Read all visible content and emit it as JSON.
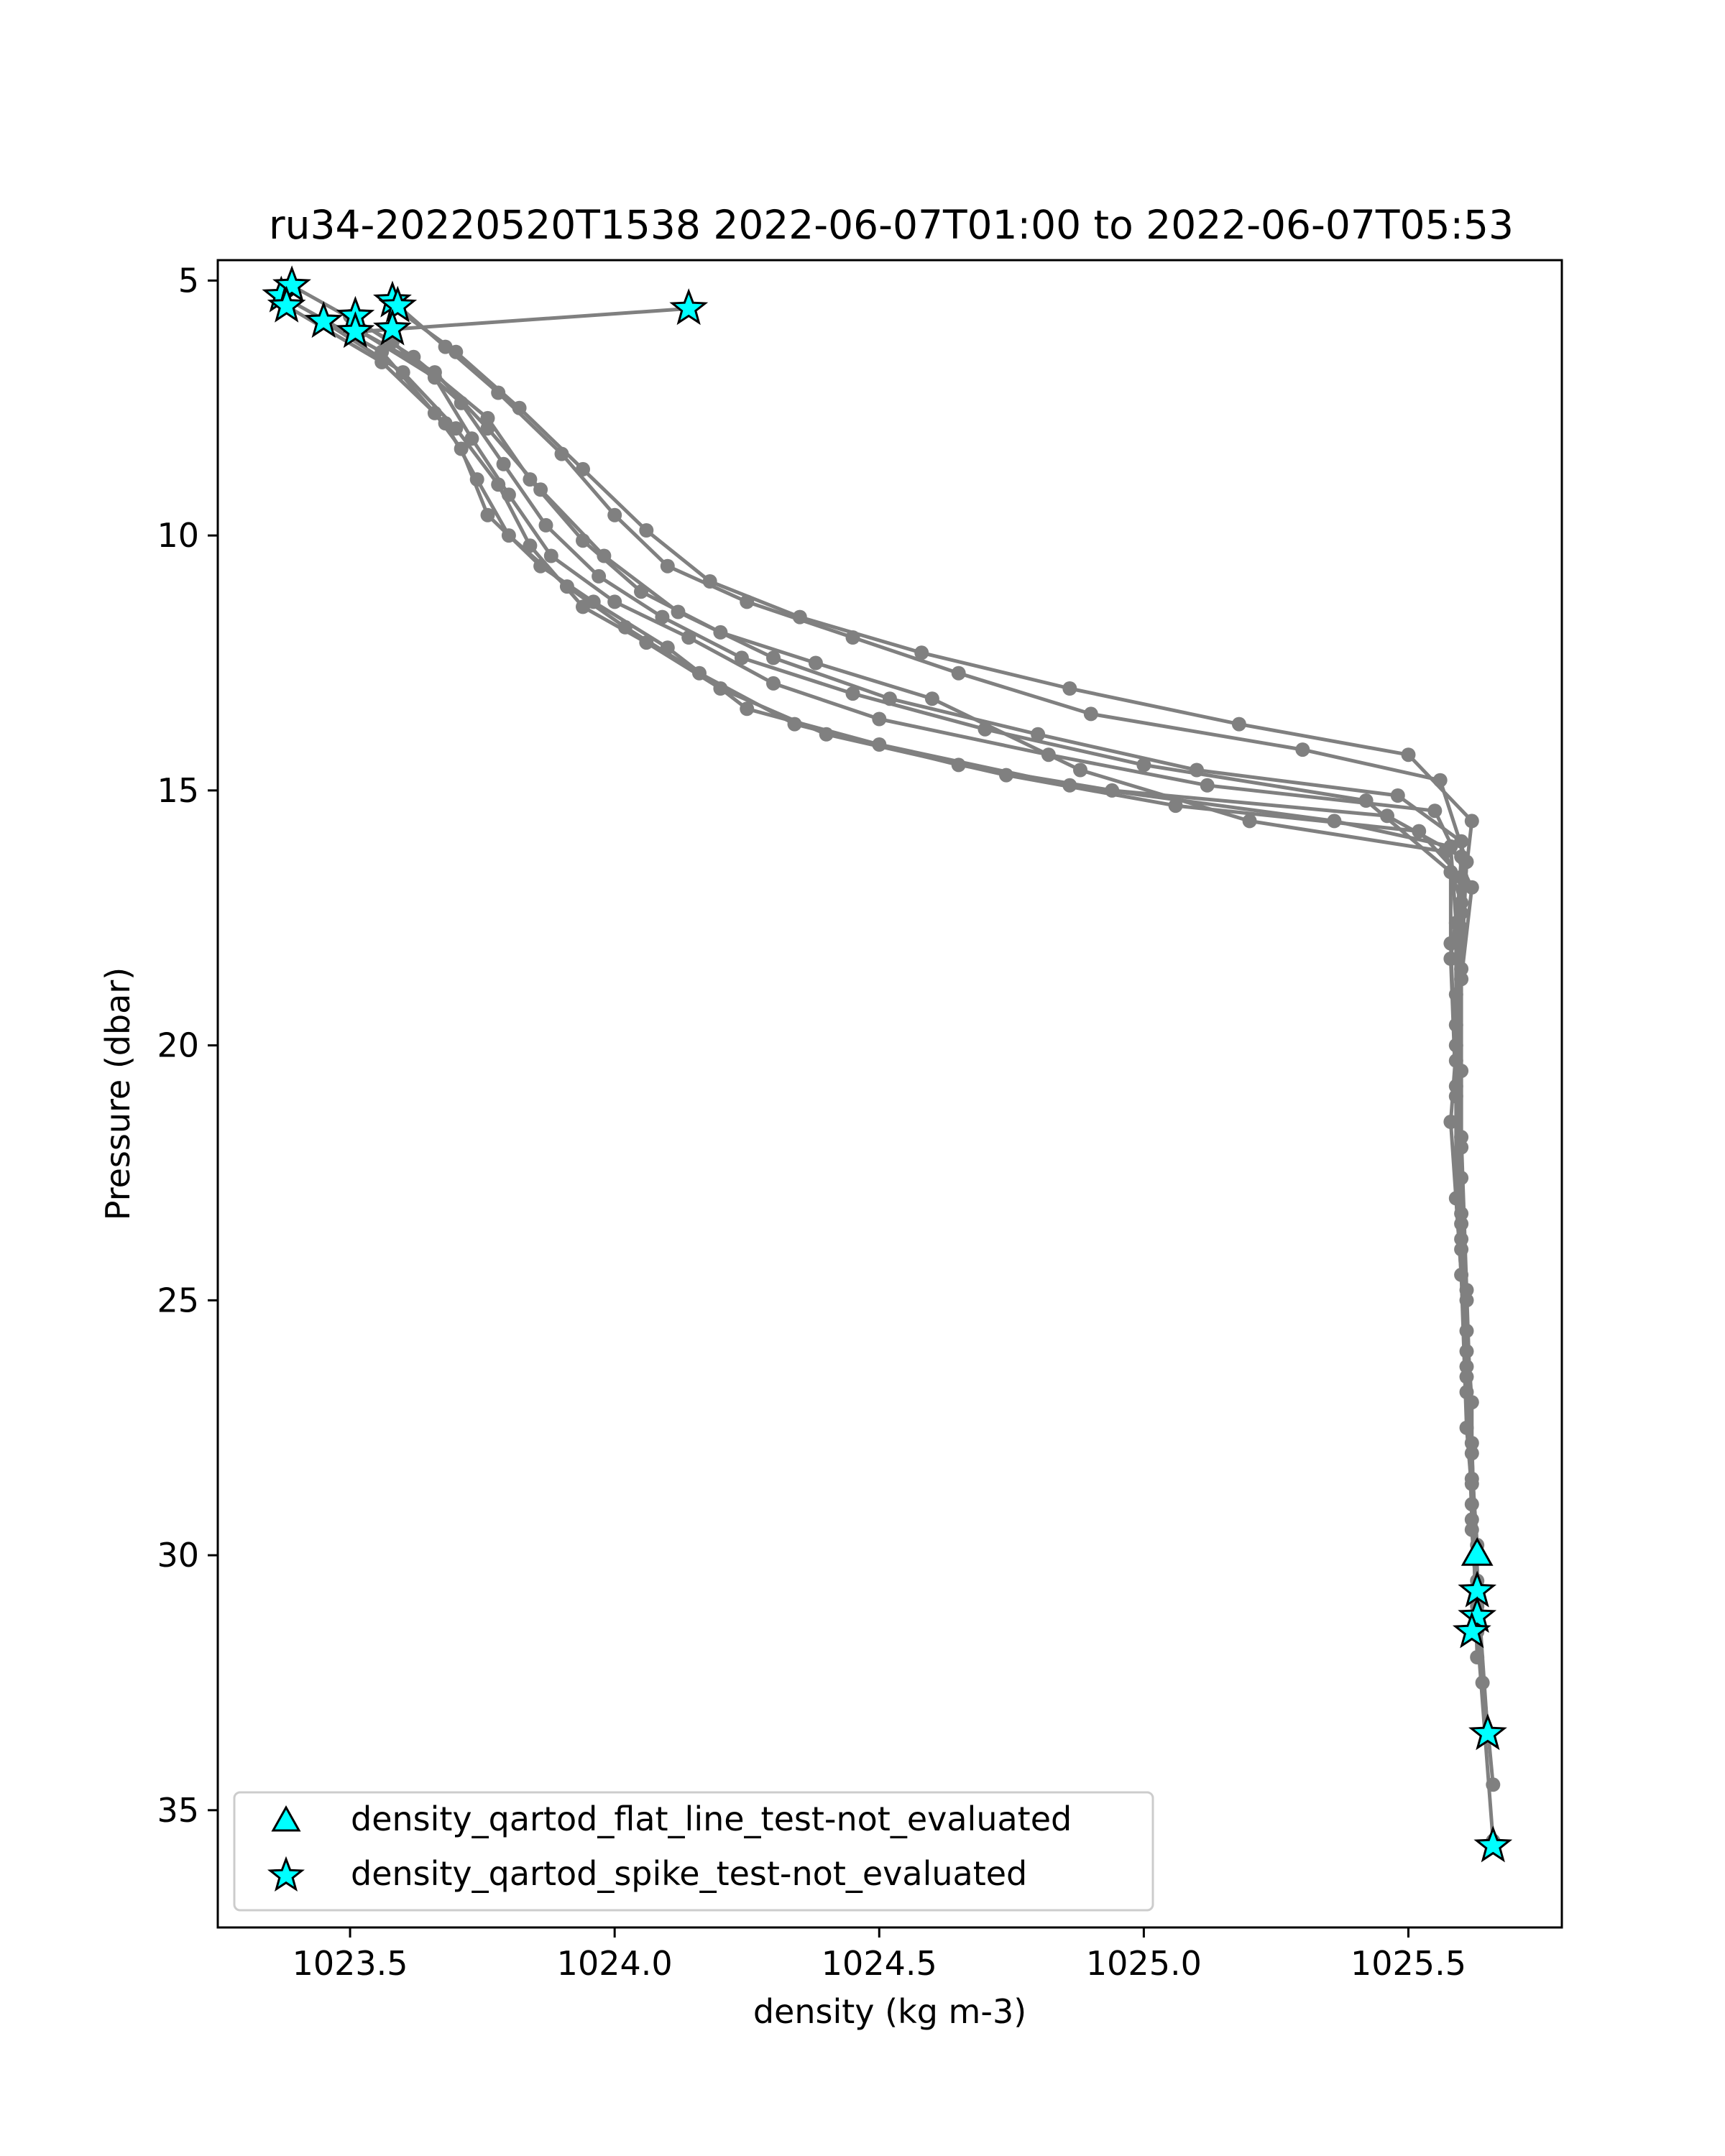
{
  "chart_data": {
    "type": "line",
    "title": "ru34-20220520T1538 2022-06-07T01:00 to 2022-06-07T05:53",
    "xlabel": "density (kg m-3)",
    "ylabel": "Pressure (dbar)",
    "xlim": [
      1023.25,
      1025.79
    ],
    "ylim": [
      37.3,
      4.6
    ],
    "y_inverted": true,
    "x_ticks": [
      1023.5,
      1024.0,
      1024.5,
      1025.0,
      1025.5
    ],
    "x_tick_labels": [
      "1023.5",
      "1024.0",
      "1024.5",
      "1025.0",
      "1025.5"
    ],
    "y_ticks": [
      5,
      10,
      15,
      20,
      25,
      30,
      35
    ],
    "y_tick_labels": [
      "5",
      "10",
      "15",
      "20",
      "25",
      "30",
      "35"
    ],
    "grid": false,
    "legend_position": "lower-left",
    "colors": {
      "line": "#808080",
      "marker_fill": "#00ffff",
      "marker_edge": "#000000"
    },
    "series": [
      {
        "profile": 1,
        "points": [
          [
            1023.37,
            5.3
          ],
          [
            1023.56,
            6.4
          ],
          [
            1023.66,
            7.6
          ],
          [
            1023.71,
            8.3
          ],
          [
            1023.76,
            9.6
          ],
          [
            1023.86,
            10.6
          ],
          [
            1023.96,
            11.3
          ],
          [
            1024.1,
            12.2
          ],
          [
            1024.25,
            13.4
          ],
          [
            1024.5,
            14.1
          ],
          [
            1024.86,
            14.9
          ],
          [
            1025.36,
            15.6
          ],
          [
            1025.58,
            16.1
          ],
          [
            1025.59,
            17.6
          ],
          [
            1025.59,
            20.0
          ],
          [
            1025.59,
            23.0
          ],
          [
            1025.61,
            26.0
          ],
          [
            1025.62,
            28.5
          ],
          [
            1025.63,
            30.5
          ],
          [
            1025.65,
            33.5
          ]
        ]
      },
      {
        "profile": 2,
        "points": [
          [
            1023.38,
            5.5
          ],
          [
            1023.56,
            6.6
          ],
          [
            1023.68,
            7.8
          ],
          [
            1023.74,
            8.9
          ],
          [
            1023.8,
            10.0
          ],
          [
            1023.91,
            11.0
          ],
          [
            1024.02,
            11.8
          ],
          [
            1024.16,
            12.7
          ],
          [
            1024.34,
            13.7
          ],
          [
            1024.65,
            14.5
          ],
          [
            1024.94,
            15.0
          ],
          [
            1025.46,
            15.5
          ],
          [
            1025.6,
            16.3
          ],
          [
            1025.59,
            17.9
          ],
          [
            1025.6,
            20.5
          ],
          [
            1025.6,
            23.5
          ],
          [
            1025.61,
            26.5
          ],
          [
            1025.62,
            29.0
          ],
          [
            1025.63,
            31.5
          ],
          [
            1025.66,
            35.6
          ]
        ]
      },
      {
        "profile": 3,
        "points": [
          [
            1023.45,
            5.8
          ],
          [
            1023.6,
            6.8
          ],
          [
            1023.7,
            7.9
          ],
          [
            1023.78,
            9.0
          ],
          [
            1023.84,
            10.2
          ],
          [
            1023.94,
            11.4
          ],
          [
            1024.06,
            12.1
          ],
          [
            1024.2,
            13.0
          ],
          [
            1024.4,
            13.9
          ],
          [
            1024.74,
            14.7
          ],
          [
            1025.06,
            15.3
          ],
          [
            1025.52,
            15.8
          ],
          [
            1025.6,
            16.7
          ],
          [
            1025.58,
            18.3
          ],
          [
            1025.59,
            21.0
          ],
          [
            1025.6,
            24.0
          ],
          [
            1025.62,
            27.0
          ],
          [
            1025.62,
            29.5
          ],
          [
            1025.63,
            31.0
          ]
        ]
      },
      {
        "profile": 4,
        "points": [
          [
            1023.52,
            6.0
          ],
          [
            1023.66,
            6.9
          ],
          [
            1023.73,
            8.1
          ],
          [
            1023.8,
            9.2
          ],
          [
            1023.88,
            10.4
          ],
          [
            1024.0,
            11.3
          ],
          [
            1024.14,
            12.0
          ],
          [
            1024.3,
            12.9
          ],
          [
            1024.5,
            13.6
          ],
          [
            1024.82,
            14.3
          ],
          [
            1025.12,
            14.9
          ],
          [
            1025.55,
            15.4
          ],
          [
            1025.62,
            16.9
          ],
          [
            1025.6,
            18.7
          ],
          [
            1025.58,
            21.5
          ],
          [
            1025.6,
            24.5
          ],
          [
            1025.61,
            27.5
          ],
          [
            1025.63,
            30.0
          ]
        ]
      },
      {
        "profile": 5,
        "points": [
          [
            1023.5,
            5.7
          ],
          [
            1023.62,
            6.5
          ],
          [
            1023.76,
            7.7
          ],
          [
            1023.84,
            8.9
          ],
          [
            1023.94,
            10.1
          ],
          [
            1024.05,
            11.1
          ],
          [
            1024.2,
            11.9
          ],
          [
            1024.38,
            12.5
          ],
          [
            1024.6,
            13.2
          ],
          [
            1024.88,
            14.6
          ],
          [
            1025.2,
            15.6
          ],
          [
            1025.57,
            16.2
          ],
          [
            1025.6,
            17.2
          ],
          [
            1025.59,
            19.0
          ],
          [
            1025.6,
            22.0
          ],
          [
            1025.61,
            25.0
          ],
          [
            1025.62,
            28.0
          ],
          [
            1025.64,
            32.5
          ]
        ]
      },
      {
        "profile": 6,
        "points": [
          [
            1023.39,
            5.1
          ],
          [
            1023.58,
            6.2
          ],
          [
            1023.71,
            7.4
          ],
          [
            1023.79,
            8.6
          ],
          [
            1023.87,
            9.8
          ],
          [
            1023.97,
            10.8
          ],
          [
            1024.09,
            11.6
          ],
          [
            1024.24,
            12.4
          ],
          [
            1024.45,
            13.1
          ],
          [
            1024.7,
            13.8
          ],
          [
            1025.0,
            14.5
          ],
          [
            1025.42,
            15.2
          ],
          [
            1025.58,
            16.6
          ],
          [
            1025.58,
            18.0
          ],
          [
            1025.59,
            20.8
          ],
          [
            1025.6,
            23.8
          ],
          [
            1025.61,
            26.8
          ],
          [
            1025.63,
            29.8
          ]
        ]
      },
      {
        "profile": 7,
        "points": [
          [
            1023.58,
            5.4
          ],
          [
            1023.68,
            6.3
          ],
          [
            1023.78,
            7.2
          ],
          [
            1023.9,
            8.4
          ],
          [
            1024.0,
            9.6
          ],
          [
            1024.1,
            10.6
          ],
          [
            1024.25,
            11.3
          ],
          [
            1024.45,
            12.0
          ],
          [
            1024.65,
            12.7
          ],
          [
            1024.9,
            13.5
          ],
          [
            1025.3,
            14.2
          ],
          [
            1025.56,
            14.8
          ],
          [
            1025.61,
            16.4
          ],
          [
            1025.6,
            18.5
          ],
          [
            1025.6,
            21.8
          ],
          [
            1025.61,
            24.8
          ],
          [
            1025.62,
            27.8
          ],
          [
            1025.63,
            31.2
          ],
          [
            1025.66,
            34.5
          ]
        ]
      },
      {
        "profile": 8,
        "points": [
          [
            1023.58,
            5.5
          ],
          [
            1023.7,
            6.4
          ],
          [
            1023.82,
            7.5
          ],
          [
            1023.94,
            8.7
          ],
          [
            1024.06,
            9.9
          ],
          [
            1024.18,
            10.9
          ],
          [
            1024.35,
            11.6
          ],
          [
            1024.58,
            12.3
          ],
          [
            1024.86,
            13.0
          ],
          [
            1025.18,
            13.7
          ],
          [
            1025.5,
            14.3
          ],
          [
            1025.62,
            15.6
          ],
          [
            1025.6,
            17.4
          ],
          [
            1025.59,
            19.6
          ],
          [
            1025.6,
            22.6
          ],
          [
            1025.61,
            25.6
          ],
          [
            1025.62,
            28.6
          ],
          [
            1025.63,
            32.0
          ]
        ]
      },
      {
        "profile": 9,
        "points": [
          [
            1024.14,
            5.55
          ],
          [
            1023.52,
            6.0
          ],
          [
            1023.66,
            6.8
          ],
          [
            1023.76,
            7.9
          ],
          [
            1023.86,
            9.1
          ],
          [
            1023.98,
            10.4
          ],
          [
            1024.12,
            11.5
          ],
          [
            1024.3,
            12.4
          ],
          [
            1024.52,
            13.2
          ],
          [
            1024.8,
            13.9
          ],
          [
            1025.1,
            14.6
          ],
          [
            1025.48,
            15.1
          ],
          [
            1025.6,
            16.0
          ],
          [
            1025.6,
            17.7
          ],
          [
            1025.59,
            20.3
          ],
          [
            1025.6,
            23.3
          ],
          [
            1025.61,
            26.3
          ],
          [
            1025.62,
            29.3
          ]
        ]
      }
    ],
    "flat_line_flags": [
      [
        1025.63,
        30.0
      ]
    ],
    "spike_flags": [
      [
        1023.37,
        5.3
      ],
      [
        1023.39,
        5.1
      ],
      [
        1023.38,
        5.5
      ],
      [
        1023.58,
        5.4
      ],
      [
        1023.59,
        5.5
      ],
      [
        1023.45,
        5.8
      ],
      [
        1023.51,
        5.7
      ],
      [
        1023.51,
        6.0
      ],
      [
        1023.58,
        5.95
      ],
      [
        1024.14,
        5.55
      ],
      [
        1025.63,
        30.7
      ],
      [
        1025.63,
        31.2
      ],
      [
        1025.62,
        31.5
      ],
      [
        1025.65,
        33.5
      ],
      [
        1025.66,
        35.7
      ]
    ],
    "legend": [
      {
        "marker": "triangle",
        "label": "density_qartod_flat_line_test-not_evaluated"
      },
      {
        "marker": "star",
        "label": "density_qartod_spike_test-not_evaluated"
      }
    ]
  }
}
